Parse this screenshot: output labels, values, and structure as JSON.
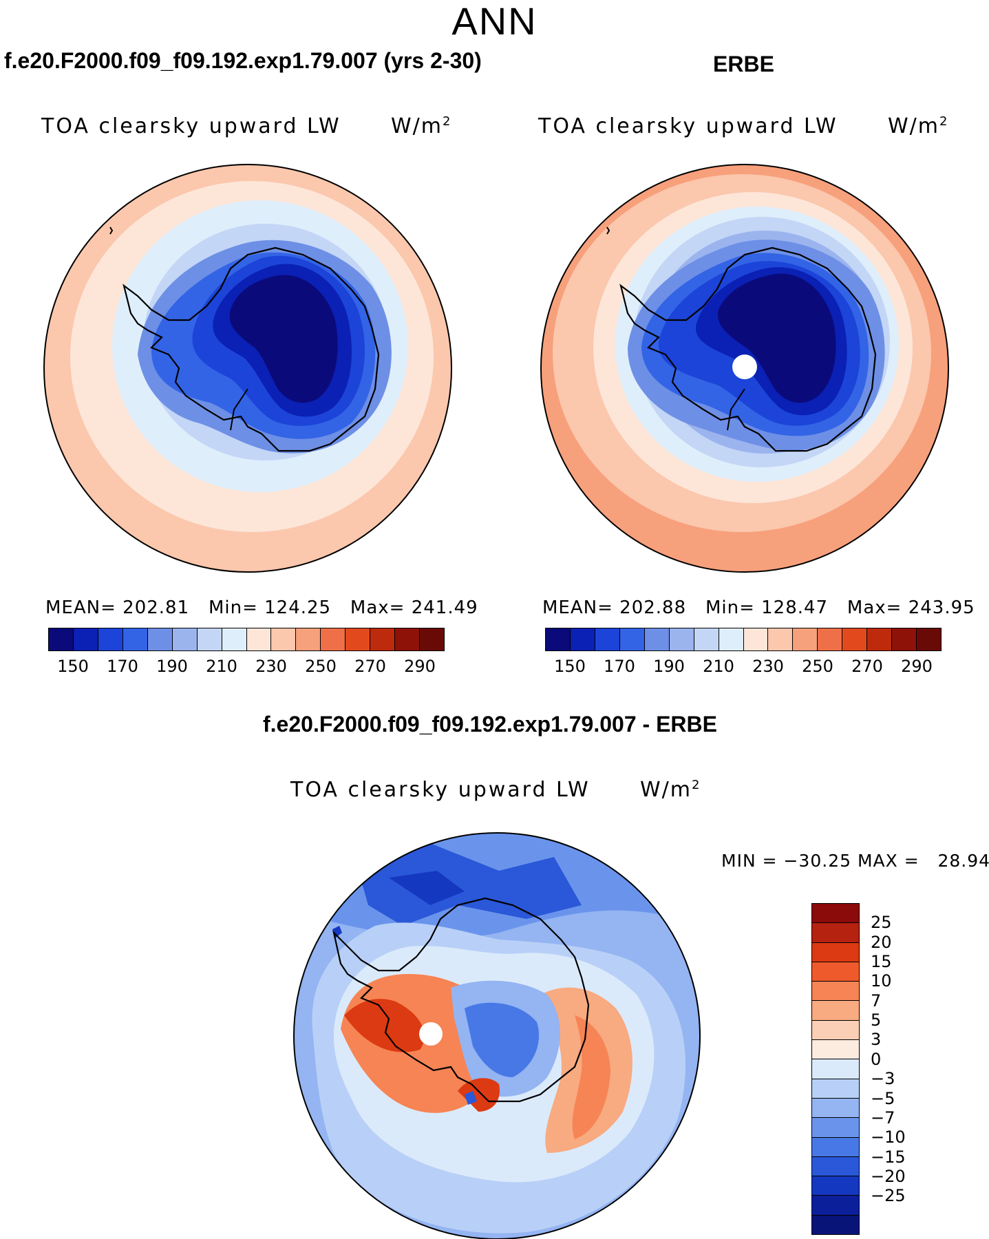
{
  "season": "ANN",
  "panels": [
    {
      "title": "f.e20.F2000.f09_f09.192.exp1.79.007 (yrs 2-30)",
      "variable": "TOA clearsky upward LW",
      "units_base": "W/m",
      "units_exp": "2",
      "mean_label": "MEAN=",
      "mean": "202.81",
      "min_label": "Min=",
      "min": "124.25",
      "max_label": "Max=",
      "max": "241.49",
      "has_pole_hole": false
    },
    {
      "title": "ERBE",
      "variable": "TOA clearsky upward LW",
      "units_base": "W/m",
      "units_exp": "2",
      "mean_label": "MEAN=",
      "mean": "202.88",
      "min_label": "Min=",
      "min": "128.47",
      "max_label": "Max=",
      "max": "243.95",
      "has_pole_hole": true
    }
  ],
  "abs_colorbar": {
    "colors": [
      "#0a0a7a",
      "#0b20b4",
      "#1c44d8",
      "#3364e6",
      "#6d8fe6",
      "#9cb4ee",
      "#c4d6f6",
      "#dfeefb",
      "#fde6d8",
      "#fbc7ad",
      "#f7a07c",
      "#ef7048",
      "#e24a1e",
      "#bd2a0c",
      "#8e1208",
      "#6a0a06"
    ],
    "labels": [
      "150",
      "170",
      "190",
      "210",
      "230",
      "250",
      "270",
      "290"
    ]
  },
  "diff": {
    "title": "f.e20.F2000.f09_f09.192.exp1.79.007 - ERBE",
    "variable": "TOA clearsky upward LW",
    "units_base": "W/m",
    "units_exp": "2",
    "minmax": "MIN = −30.25 MAX =   28.94",
    "colors": [
      "#8b0a0a",
      "#b52210",
      "#dc3a12",
      "#ee5a2c",
      "#f68454",
      "#f8aa80",
      "#fbcfb5",
      "#fcebdf",
      "#dbeafb",
      "#b8d0f7",
      "#94b4f2",
      "#6a94ec",
      "#4878e6",
      "#2a58d8",
      "#1538c0",
      "#0c1f9a",
      "#081478"
    ],
    "labels": [
      "25",
      "20",
      "15",
      "10",
      "7",
      "5",
      "3",
      "0",
      "−3",
      "−5",
      "−7",
      "−10",
      "−15",
      "−20",
      "−25"
    ]
  }
}
